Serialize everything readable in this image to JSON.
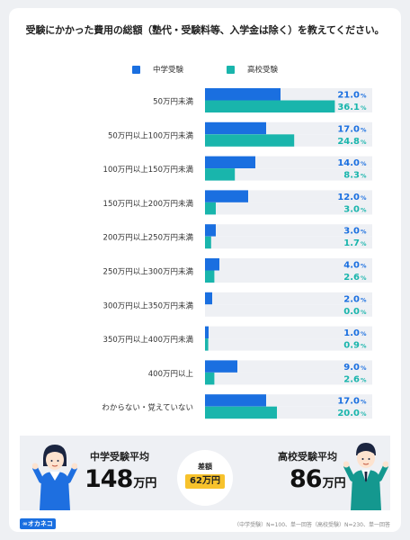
{
  "title": "受験にかかった費用の総額（塾代・受験料等、入学金は除く）を教えてください。",
  "colors": {
    "junior": "#1a6fe0",
    "high": "#19b5ac",
    "track": "#eef0f4"
  },
  "chart_data": {
    "type": "bar",
    "orientation": "horizontal",
    "title": "受験にかかった費用の総額（塾代・受験料等、入学金は除く）を教えてください。",
    "categories": [
      "50万円未満",
      "50万円以上100万円未満",
      "100万円以上150万円未満",
      "150万円以上200万円未満",
      "200万円以上250万円未満",
      "250万円以上300万円未満",
      "300万円以上350万円未満",
      "350万円以上400万円未満",
      "400万円以上",
      "わからない・覚えていない"
    ],
    "series": [
      {
        "name": "中学受験",
        "values": [
          21.0,
          17.0,
          14.0,
          12.0,
          3.0,
          4.0,
          2.0,
          1.0,
          9.0,
          17.0
        ],
        "labels": [
          "21.0",
          "17.0",
          "14.0",
          "12.0",
          "3.0",
          "4.0",
          "2.0",
          "1.0",
          "9.0",
          "17.0"
        ]
      },
      {
        "name": "高校受験",
        "values": [
          36.1,
          24.8,
          8.3,
          3.0,
          1.7,
          2.6,
          0.0,
          0.9,
          2.6,
          20.0
        ],
        "labels": [
          "36.1",
          "24.8",
          "8.3",
          "3.0",
          "1.7",
          "2.6",
          "0.0",
          "0.9",
          "2.6",
          "20.0"
        ]
      }
    ],
    "unit": "%",
    "xlim": [
      0,
      40
    ],
    "legend": "top-center",
    "grid": false
  },
  "summary": {
    "left_title": "中学受験平均",
    "left_value": "148",
    "right_title": "高校受験平均",
    "right_value": "86",
    "unit": "万円",
    "diff_label": "差額",
    "diff_value": "62万円"
  },
  "brand": {
    "logo": "∞オカネコ"
  },
  "footnote": "（中学受験）N=100、単一回答（高校受験）N=230、単一回答"
}
